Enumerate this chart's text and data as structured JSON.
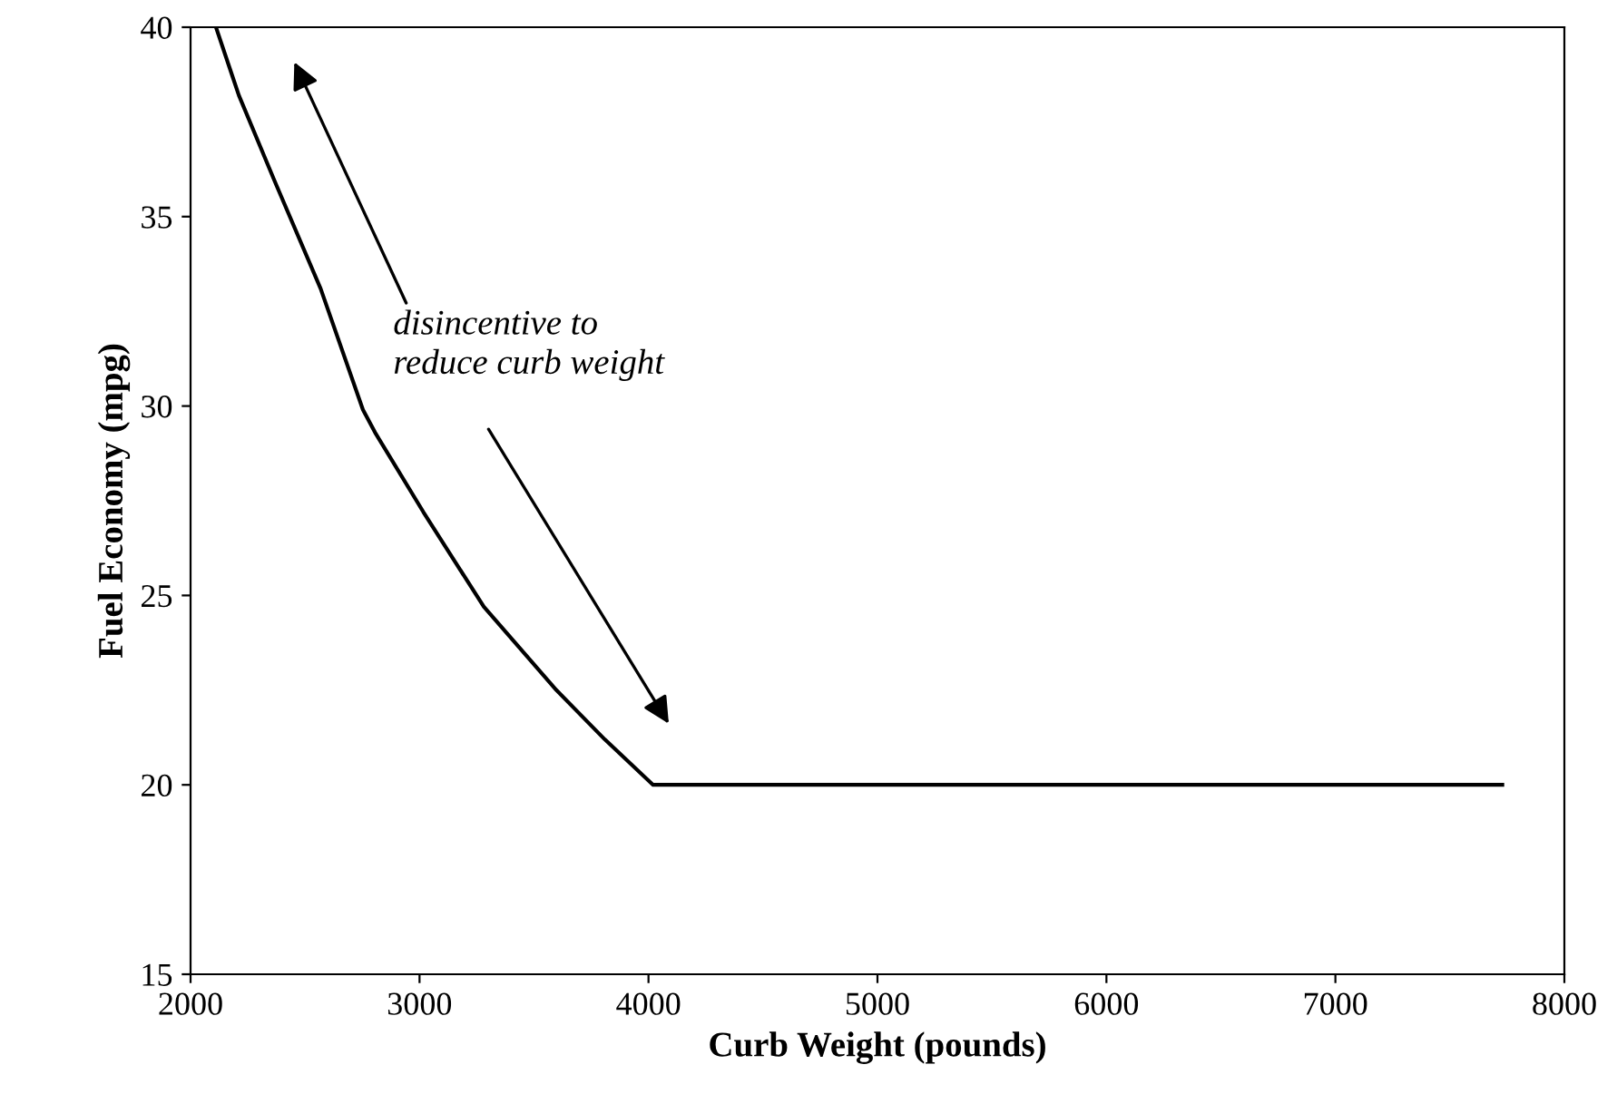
{
  "chart_data": {
    "type": "line",
    "xlabel": "Curb Weight (pounds)",
    "ylabel": "Fuel Economy (mpg)",
    "x": [
      2111,
      2211,
      2370,
      2568,
      2753,
      2806,
      3017,
      3281,
      3598,
      3809,
      4020,
      7729
    ],
    "values": [
      40,
      38.2,
      35.9,
      33.1,
      29.9,
      29.3,
      27.2,
      24.7,
      22.5,
      21.2,
      20,
      20
    ],
    "color": "#000000",
    "xlim": [
      2000,
      8000
    ],
    "xticks": [
      2000,
      3000,
      4000,
      5000,
      6000,
      7000,
      8000
    ],
    "ylim": [
      15,
      40
    ],
    "yticks": [
      15,
      20,
      25,
      30,
      35,
      40
    ],
    "grid": false,
    "legend": false,
    "marker": "none",
    "line_style": "solid",
    "annotations": [
      "disincentive to\nreduce curb weight"
    ]
  }
}
